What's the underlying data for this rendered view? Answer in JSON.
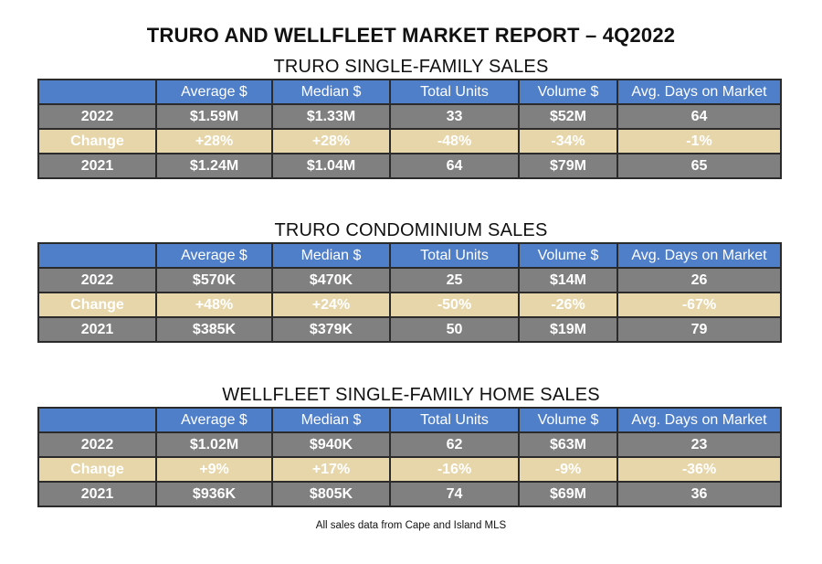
{
  "report_title": "TRURO AND WELLFLEET MARKET REPORT – 4Q2022",
  "columns": [
    "",
    "Average $",
    "Median $",
    "Total Units",
    "Volume $",
    "Avg. Days on Market"
  ],
  "sections": [
    {
      "title": "TRURO SINGLE-FAMILY SALES",
      "rows": [
        [
          "2022",
          "$1.59M",
          "$1.33M",
          "33",
          "$52M",
          "64"
        ],
        [
          "Change",
          "+28%",
          "+28%",
          "-48%",
          "-34%",
          "-1%"
        ],
        [
          "2021",
          "$1.24M",
          "$1.04M",
          "64",
          "$79M",
          "65"
        ]
      ]
    },
    {
      "title": "TRURO CONDOMINIUM SALES",
      "rows": [
        [
          "2022",
          "$570K",
          "$470K",
          "25",
          "$14M",
          "26"
        ],
        [
          "Change",
          "+48%",
          "+24%",
          "-50%",
          "-26%",
          "-67%"
        ],
        [
          "2021",
          "$385K",
          "$379K",
          "50",
          "$19M",
          "79"
        ]
      ]
    },
    {
      "title": "WELLFLEET SINGLE-FAMILY HOME SALES",
      "rows": [
        [
          "2022",
          "$1.02M",
          "$940K",
          "62",
          "$63M",
          "23"
        ],
        [
          "Change",
          "+9%",
          "+17%",
          "-16%",
          "-9%",
          "-36%"
        ],
        [
          "2021",
          "$936K",
          "$805K",
          "74",
          "$69M",
          "36"
        ]
      ]
    }
  ],
  "footnote": "All sales data from Cape and Island MLS",
  "colors": {
    "header_blue": "#4f7fc9",
    "row_gray": "#808080",
    "change_tan": "#e7d6aa",
    "border": "#2b2b2b"
  }
}
